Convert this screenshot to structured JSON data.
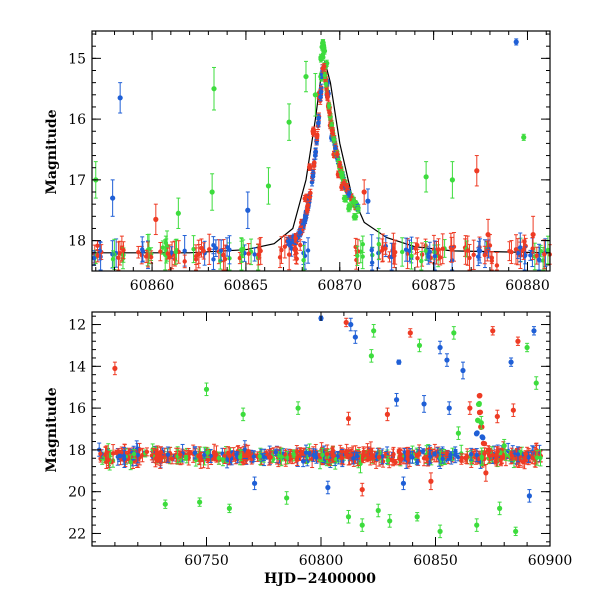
{
  "colors": {
    "blue": "#1f5fd6",
    "green": "#3ddc3d",
    "red": "#ee3b24",
    "model": "#000000"
  },
  "chart_data": [
    {
      "type": "scatter",
      "id": "top",
      "xlabel": "",
      "ylabel": "Magnitude",
      "xlim": [
        60856.8,
        60881.2
      ],
      "ylim": [
        18.5,
        14.55
      ],
      "y_inverted": true,
      "xticks": [
        60860,
        60865,
        60870,
        60875,
        60880
      ],
      "yticks": [
        15,
        16,
        17,
        18
      ],
      "grid": false,
      "model_curve": {
        "x": [
          60856.8,
          60862,
          60865,
          60866.5,
          60867.5,
          60868.2,
          60868.7,
          60869.0,
          60869.2,
          60869.5,
          60870.0,
          60870.6,
          60871.3,
          60872.5,
          60874,
          60876,
          60881.2
        ],
        "y": [
          18.2,
          18.2,
          18.15,
          18.05,
          17.8,
          17.0,
          16.0,
          15.3,
          15.05,
          15.4,
          16.4,
          17.2,
          17.7,
          17.95,
          18.1,
          18.17,
          18.2
        ]
      },
      "peak": [
        {
          "x": 60868.9,
          "y": 15.6,
          "series": "red"
        },
        {
          "x": 60869.0,
          "y": 15.3,
          "series": "green"
        },
        {
          "x": 60869.05,
          "y": 15.0,
          "series": "green"
        },
        {
          "x": 60869.1,
          "y": 14.8,
          "series": "green"
        },
        {
          "x": 60869.15,
          "y": 14.75,
          "series": "green"
        },
        {
          "x": 60869.2,
          "y": 14.85,
          "series": "green"
        },
        {
          "x": 60869.25,
          "y": 15.1,
          "series": "green"
        },
        {
          "x": 60869.3,
          "y": 15.4,
          "series": "blue"
        },
        {
          "x": 60869.35,
          "y": 15.6,
          "series": "blue"
        },
        {
          "x": 60869.4,
          "y": 15.8,
          "series": "red"
        },
        {
          "x": 60869.5,
          "y": 16.1,
          "series": "red"
        },
        {
          "x": 60869.6,
          "y": 16.3,
          "series": "blue"
        },
        {
          "x": 60869.75,
          "y": 16.6,
          "series": "red"
        },
        {
          "x": 60869.9,
          "y": 16.9,
          "series": "red"
        },
        {
          "x": 60870.1,
          "y": 17.1,
          "series": "red"
        },
        {
          "x": 60870.3,
          "y": 17.3,
          "series": "green"
        },
        {
          "x": 60870.5,
          "y": 17.45,
          "series": "green"
        },
        {
          "x": 60870.8,
          "y": 17.6,
          "series": "green"
        },
        {
          "x": 60868.6,
          "y": 16.2,
          "series": "red"
        },
        {
          "x": 60868.4,
          "y": 16.8,
          "series": "red"
        },
        {
          "x": 60868.2,
          "y": 17.3,
          "series": "red"
        },
        {
          "x": 60868.0,
          "y": 17.7,
          "series": "red"
        }
      ],
      "outliers": [
        {
          "x": 60858.3,
          "y": 15.65,
          "err": 0.25,
          "series": "blue"
        },
        {
          "x": 60863.3,
          "y": 15.5,
          "err": 0.35,
          "series": "green"
        },
        {
          "x": 60867.3,
          "y": 16.05,
          "err": 0.3,
          "series": "green"
        },
        {
          "x": 60868.7,
          "y": 15.6,
          "err": 0.35,
          "series": "green"
        },
        {
          "x": 60868.2,
          "y": 15.3,
          "err": 0.25,
          "series": "green"
        },
        {
          "x": 60866.2,
          "y": 17.1,
          "err": 0.3,
          "series": "green"
        },
        {
          "x": 60863.2,
          "y": 17.2,
          "err": 0.3,
          "series": "green"
        },
        {
          "x": 60857.0,
          "y": 17.0,
          "err": 0.3,
          "series": "green"
        },
        {
          "x": 60871.3,
          "y": 17.2,
          "err": 0.2,
          "series": "red"
        },
        {
          "x": 60871.5,
          "y": 17.35,
          "err": 0.2,
          "series": "blue"
        },
        {
          "x": 60874.6,
          "y": 16.95,
          "err": 0.25,
          "series": "green"
        },
        {
          "x": 60876.0,
          "y": 17.0,
          "err": 0.3,
          "series": "green"
        },
        {
          "x": 60877.3,
          "y": 16.85,
          "err": 0.25,
          "series": "red"
        },
        {
          "x": 60877.9,
          "y": 17.9,
          "err": 0.25,
          "series": "red"
        },
        {
          "x": 60879.4,
          "y": 14.73,
          "err": 0.05,
          "series": "blue"
        },
        {
          "x": 60879.8,
          "y": 16.3,
          "err": 0.05,
          "series": "green"
        },
        {
          "x": 60880.3,
          "y": 17.9,
          "err": 0.3,
          "series": "red"
        },
        {
          "x": 60857.9,
          "y": 17.3,
          "err": 0.3,
          "series": "blue"
        },
        {
          "x": 60860.2,
          "y": 17.65,
          "err": 0.25,
          "series": "red"
        },
        {
          "x": 60861.4,
          "y": 17.55,
          "err": 0.25,
          "series": "green"
        },
        {
          "x": 60865.1,
          "y": 17.5,
          "err": 0.3,
          "series": "blue"
        }
      ],
      "baseline_mag": 18.2,
      "baseline_scatter": 0.25,
      "baseline_segments": [
        [
          60856.8,
          60857.5
        ],
        [
          60857.8,
          60858.8
        ],
        [
          60859.2,
          60861.8
        ],
        [
          60862.2,
          60864.2
        ],
        [
          60864.5,
          60865.8
        ],
        [
          60866.8,
          60868.4
        ],
        [
          60870.8,
          60873.0
        ],
        [
          60873.3,
          60876.2
        ],
        [
          60876.6,
          60878.4
        ],
        [
          60878.7,
          60881.2
        ]
      ]
    },
    {
      "type": "scatter",
      "id": "bottom",
      "xlabel": "HJD−2400000",
      "ylabel": "Magnitude",
      "xlim": [
        60700,
        60900
      ],
      "ylim": [
        22.6,
        11.4
      ],
      "y_inverted": true,
      "xticks": [
        60750,
        60800,
        60850,
        60900
      ],
      "yticks": [
        12,
        14,
        16,
        18,
        20,
        22
      ],
      "grid": false,
      "outliers": [
        {
          "x": 60710,
          "y": 14.1,
          "err": 0.3,
          "series": "red"
        },
        {
          "x": 60750,
          "y": 15.1,
          "err": 0.3,
          "series": "green"
        },
        {
          "x": 60800,
          "y": 11.7,
          "err": 0.1,
          "series": "blue"
        },
        {
          "x": 60811,
          "y": 11.9,
          "err": 0.2,
          "series": "red"
        },
        {
          "x": 60813,
          "y": 12.0,
          "err": 0.3,
          "series": "blue"
        },
        {
          "x": 60815,
          "y": 12.6,
          "err": 0.3,
          "series": "blue"
        },
        {
          "x": 60823,
          "y": 12.3,
          "err": 0.3,
          "series": "green"
        },
        {
          "x": 60822,
          "y": 13.5,
          "err": 0.3,
          "series": "green"
        },
        {
          "x": 60834,
          "y": 13.8,
          "err": 0.1,
          "series": "blue"
        },
        {
          "x": 60839,
          "y": 12.4,
          "err": 0.2,
          "series": "red"
        },
        {
          "x": 60843,
          "y": 13.0,
          "err": 0.3,
          "series": "green"
        },
        {
          "x": 60852,
          "y": 13.1,
          "err": 0.3,
          "series": "blue"
        },
        {
          "x": 60855,
          "y": 13.7,
          "err": 0.3,
          "series": "blue"
        },
        {
          "x": 60858,
          "y": 12.4,
          "err": 0.3,
          "series": "green"
        },
        {
          "x": 60862,
          "y": 14.2,
          "err": 0.4,
          "series": "blue"
        },
        {
          "x": 60875,
          "y": 12.3,
          "err": 0.2,
          "series": "red"
        },
        {
          "x": 60883,
          "y": 13.8,
          "err": 0.2,
          "series": "blue"
        },
        {
          "x": 60886,
          "y": 12.8,
          "err": 0.2,
          "series": "red"
        },
        {
          "x": 60893,
          "y": 12.3,
          "err": 0.2,
          "series": "blue"
        },
        {
          "x": 60890,
          "y": 13.1,
          "err": 0.2,
          "series": "green"
        },
        {
          "x": 60894,
          "y": 14.8,
          "err": 0.3,
          "series": "green"
        },
        {
          "x": 60845,
          "y": 15.8,
          "err": 0.4,
          "series": "blue"
        },
        {
          "x": 60833,
          "y": 15.6,
          "err": 0.3,
          "series": "blue"
        },
        {
          "x": 60829,
          "y": 16.3,
          "err": 0.3,
          "series": "red"
        },
        {
          "x": 60812,
          "y": 16.5,
          "err": 0.3,
          "series": "red"
        },
        {
          "x": 60766,
          "y": 16.3,
          "err": 0.3,
          "series": "green"
        },
        {
          "x": 60790,
          "y": 16.0,
          "err": 0.3,
          "series": "green"
        },
        {
          "x": 60856,
          "y": 16.0,
          "err": 0.3,
          "series": "blue"
        },
        {
          "x": 60860,
          "y": 17.2,
          "err": 0.3,
          "series": "green"
        },
        {
          "x": 60870,
          "y": 16.7,
          "err": 0.3,
          "series": "green"
        },
        {
          "x": 60877,
          "y": 16.4,
          "err": 0.3,
          "series": "red"
        },
        {
          "x": 60884,
          "y": 16.1,
          "err": 0.3,
          "series": "red"
        },
        {
          "x": 60880,
          "y": 17.8,
          "err": 0.3,
          "series": "green"
        },
        {
          "x": 60865,
          "y": 16.0,
          "err": 0.3,
          "series": "red"
        },
        {
          "x": 60732,
          "y": 20.6,
          "err": 0.2,
          "series": "green"
        },
        {
          "x": 60747,
          "y": 20.5,
          "err": 0.2,
          "series": "green"
        },
        {
          "x": 60760,
          "y": 20.8,
          "err": 0.2,
          "series": "green"
        },
        {
          "x": 60785,
          "y": 20.3,
          "err": 0.3,
          "series": "green"
        },
        {
          "x": 60812,
          "y": 21.2,
          "err": 0.3,
          "series": "green"
        },
        {
          "x": 60818,
          "y": 21.6,
          "err": 0.3,
          "series": "green"
        },
        {
          "x": 60825,
          "y": 20.9,
          "err": 0.3,
          "series": "green"
        },
        {
          "x": 60830,
          "y": 21.4,
          "err": 0.3,
          "series": "green"
        },
        {
          "x": 60842,
          "y": 21.2,
          "err": 0.2,
          "series": "green"
        },
        {
          "x": 60852,
          "y": 21.9,
          "err": 0.3,
          "series": "green"
        },
        {
          "x": 60868,
          "y": 21.6,
          "err": 0.3,
          "series": "green"
        },
        {
          "x": 60878,
          "y": 20.8,
          "err": 0.3,
          "series": "green"
        },
        {
          "x": 60885,
          "y": 21.9,
          "err": 0.2,
          "series": "green"
        },
        {
          "x": 60836,
          "y": 19.6,
          "err": 0.3,
          "series": "blue"
        },
        {
          "x": 60803,
          "y": 19.8,
          "err": 0.3,
          "series": "blue"
        },
        {
          "x": 60771,
          "y": 19.6,
          "err": 0.3,
          "series": "blue"
        },
        {
          "x": 60891,
          "y": 20.2,
          "err": 0.3,
          "series": "blue"
        },
        {
          "x": 60872,
          "y": 19.1,
          "err": 0.4,
          "series": "red"
        },
        {
          "x": 60848,
          "y": 19.5,
          "err": 0.4,
          "series": "red"
        },
        {
          "x": 60818,
          "y": 19.9,
          "err": 0.3,
          "series": "red"
        }
      ],
      "flare": [
        {
          "x": 60868.5,
          "y": 16.6,
          "series": "green"
        },
        {
          "x": 60869.0,
          "y": 15.8,
          "series": "green"
        },
        {
          "x": 60869.2,
          "y": 15.4,
          "series": "red"
        },
        {
          "x": 60869.5,
          "y": 16.2,
          "series": "red"
        },
        {
          "x": 60870.0,
          "y": 16.9,
          "series": "red"
        },
        {
          "x": 60870.6,
          "y": 17.4,
          "series": "blue"
        },
        {
          "x": 60871.2,
          "y": 17.7,
          "series": "red"
        },
        {
          "x": 60868.2,
          "y": 17.2,
          "series": "blue"
        }
      ],
      "baseline_mag": 18.3,
      "baseline_scatter": 0.45,
      "baseline_segments": [
        [
          60703,
          60724
        ],
        [
          60726,
          60896
        ]
      ]
    }
  ]
}
